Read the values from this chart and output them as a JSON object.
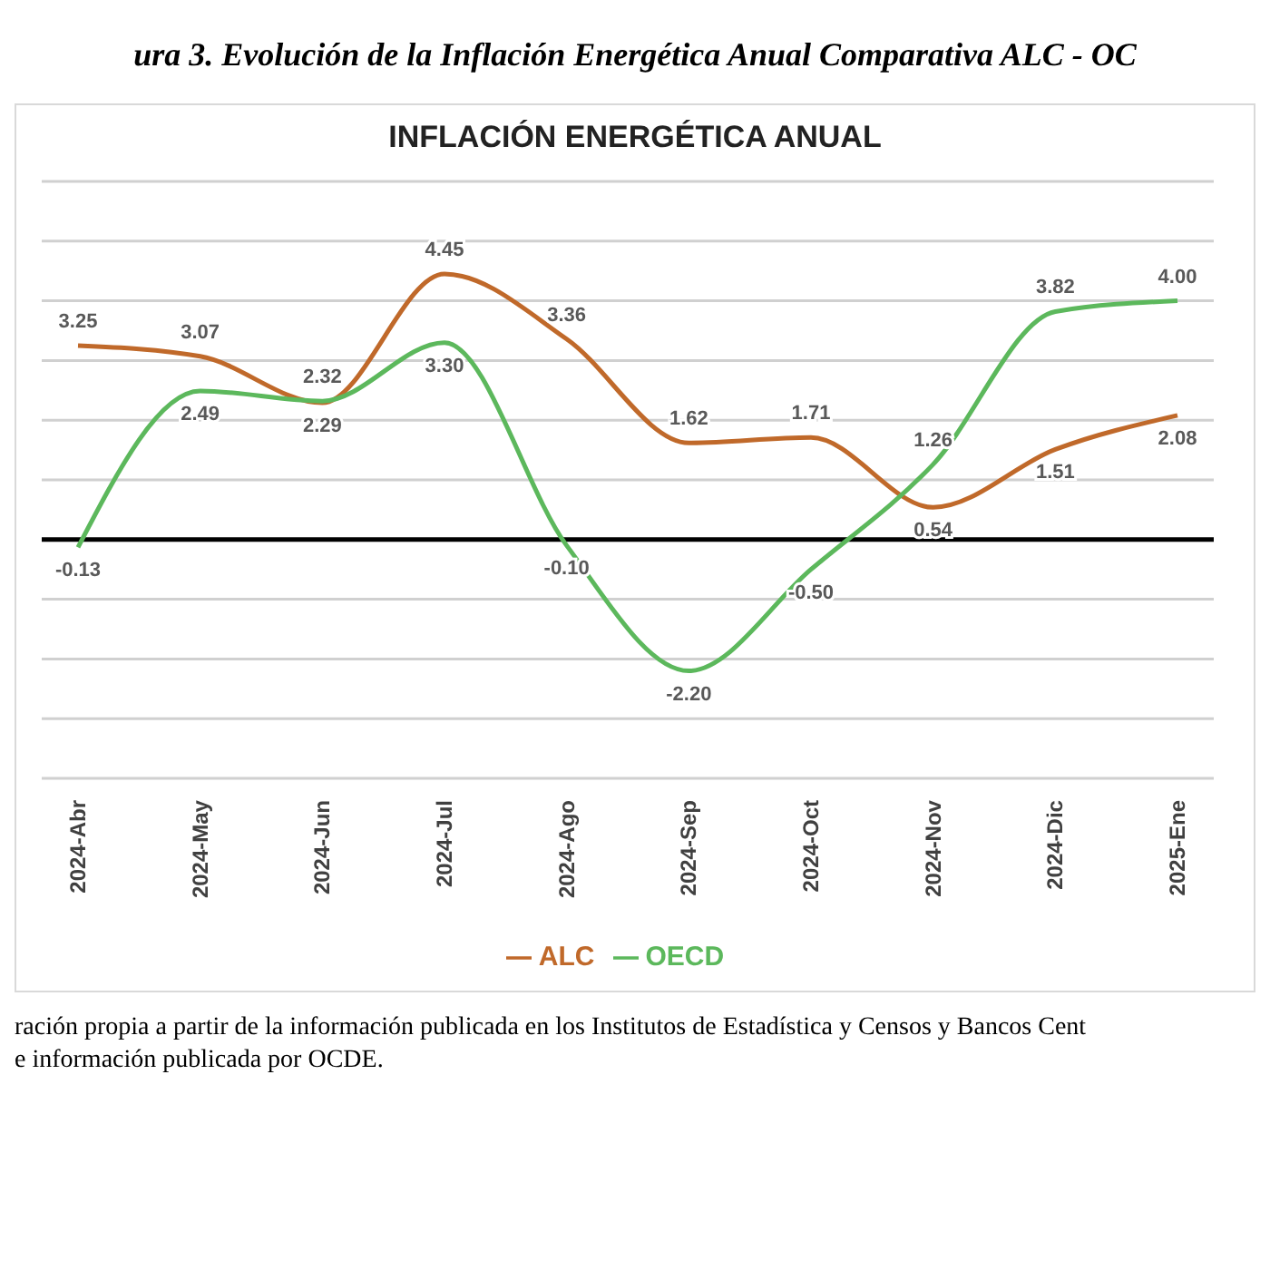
{
  "chart_data": {
    "type": "line",
    "title": "INFLACIÓN ENERGÉTICA ANUAL",
    "annotations": [
      "ura 3. Evolución de la Inflación Energética Anual Comparativa ALC - OC",
      "ración propia a partir de la información publicada en los Institutos de Estadística y Censos y Bancos Cent",
      "e información publicada por OCDE."
    ],
    "categories": [
      "2024-Abr",
      "2024-May",
      "2024-Jun",
      "2024-Jul",
      "2024-Ago",
      "2024-Sep",
      "2024-Oct",
      "2024-Nov",
      "2024-Dic",
      "2025-Ene"
    ],
    "series": [
      {
        "name": "ALC",
        "color": "#c0692a",
        "values": [
          3.25,
          3.07,
          2.29,
          4.45,
          3.36,
          1.62,
          1.71,
          0.54,
          1.51,
          2.08
        ],
        "value_labels": [
          "3.25",
          "3.07",
          "2.29",
          "4.45",
          "3.36",
          "1.62",
          "1.71",
          "0.54",
          "1.51",
          "2.08"
        ]
      },
      {
        "name": "OECD",
        "color": "#5cb85c",
        "values": [
          -0.13,
          2.49,
          2.32,
          3.3,
          -0.1,
          -2.2,
          -0.5,
          1.26,
          3.82,
          4.0
        ],
        "value_labels": [
          "-0.13",
          "2.49",
          "2.32",
          "3.30",
          "-0.10",
          "-2.20",
          "-0.50",
          "1.26",
          "3.82",
          "4.00"
        ]
      }
    ],
    "ylim": [
      -4,
      6
    ],
    "yticks": [
      {
        "value": -4,
        "label": null
      },
      {
        "value": -3,
        "label": null
      },
      {
        "value": -2,
        "label": null
      },
      {
        "value": -1,
        "label": null
      },
      {
        "value": 0,
        "label": null
      },
      {
        "value": 1,
        "label": null
      },
      {
        "value": 2,
        "label": null
      },
      {
        "value": 3,
        "label": null
      },
      {
        "value": 4,
        "label": null
      },
      {
        "value": 5,
        "label": null
      },
      {
        "value": 6,
        "label": null
      }
    ],
    "tick_labels": "x",
    "grid": "y",
    "legend": "bottom",
    "marker": "none",
    "line_style": "solid",
    "ref_lines": [
      {
        "axis": "y",
        "value": 0,
        "color": "#000000",
        "line_style": "solid"
      }
    ]
  }
}
